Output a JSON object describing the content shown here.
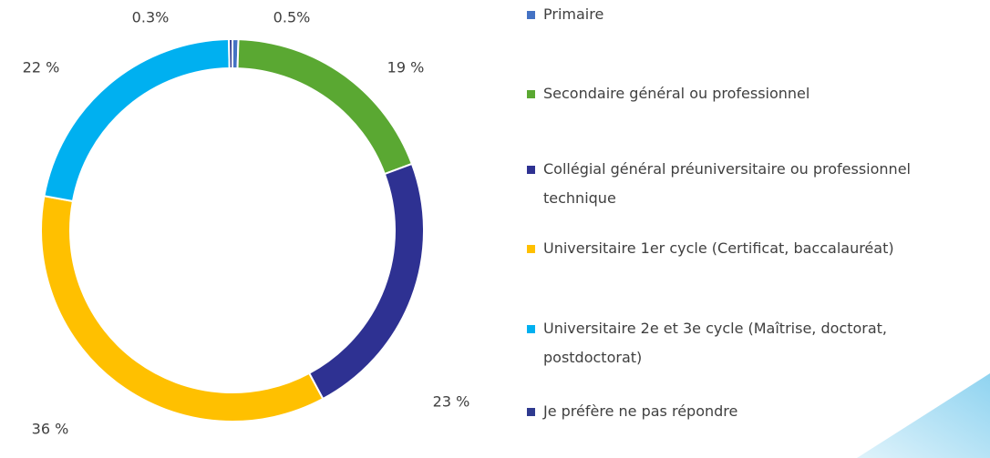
{
  "chart_data": {
    "type": "donut",
    "categories": [
      "Primaire",
      "Secondaire général ou professionnel",
      "Collégial général préuniversitaire ou professionnel technique",
      "Universitaire 1er cycle (Certificat, baccalauréat)",
      "Universitaire 2e et 3e cycle (Maîtrise, doctorat, postdoctorat)",
      "Je préfère ne pas répondre"
    ],
    "values": [
      0.5,
      19,
      23,
      36,
      22,
      0.3
    ],
    "value_labels": [
      "0.5%",
      "19 %",
      "23 %",
      "36 %",
      "22 %",
      "0.3%"
    ],
    "colors": [
      "#4472c4",
      "#5aa832",
      "#2e3192",
      "#ffc000",
      "#00b0f0",
      "#2f3a8f"
    ],
    "legend": "right"
  }
}
